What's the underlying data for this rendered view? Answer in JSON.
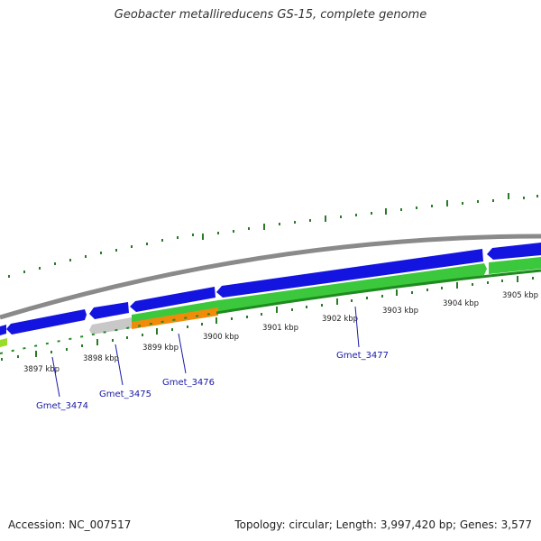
{
  "title": "Geobacter metallireducens GS-15, complete genome",
  "footer": {
    "accession": "Accession: NC_007517",
    "summary": "Topology: circular; Length: 3,997,420 bp; Genes: 3,577"
  },
  "colors": {
    "forward_cds": "#1414e0",
    "reverse_cds": "#3cc83c",
    "backbone": "#8a8a8a",
    "pseudo": "#c8c8c8",
    "orange": "#f08c0a",
    "tick": "#2a7a2a",
    "label_line": "#1a1aa6"
  },
  "scale_labels": [
    "3897 kbp",
    "3898 kbp",
    "3899 kbp",
    "3900 kbp",
    "3901 kbp",
    "3902 kbp",
    "3903 kbp",
    "3904 kbp",
    "3905 kbp"
  ],
  "gene_labels": [
    "Gmet_3474",
    "Gmet_3475",
    "Gmet_3476",
    "Gmet_3477"
  ]
}
